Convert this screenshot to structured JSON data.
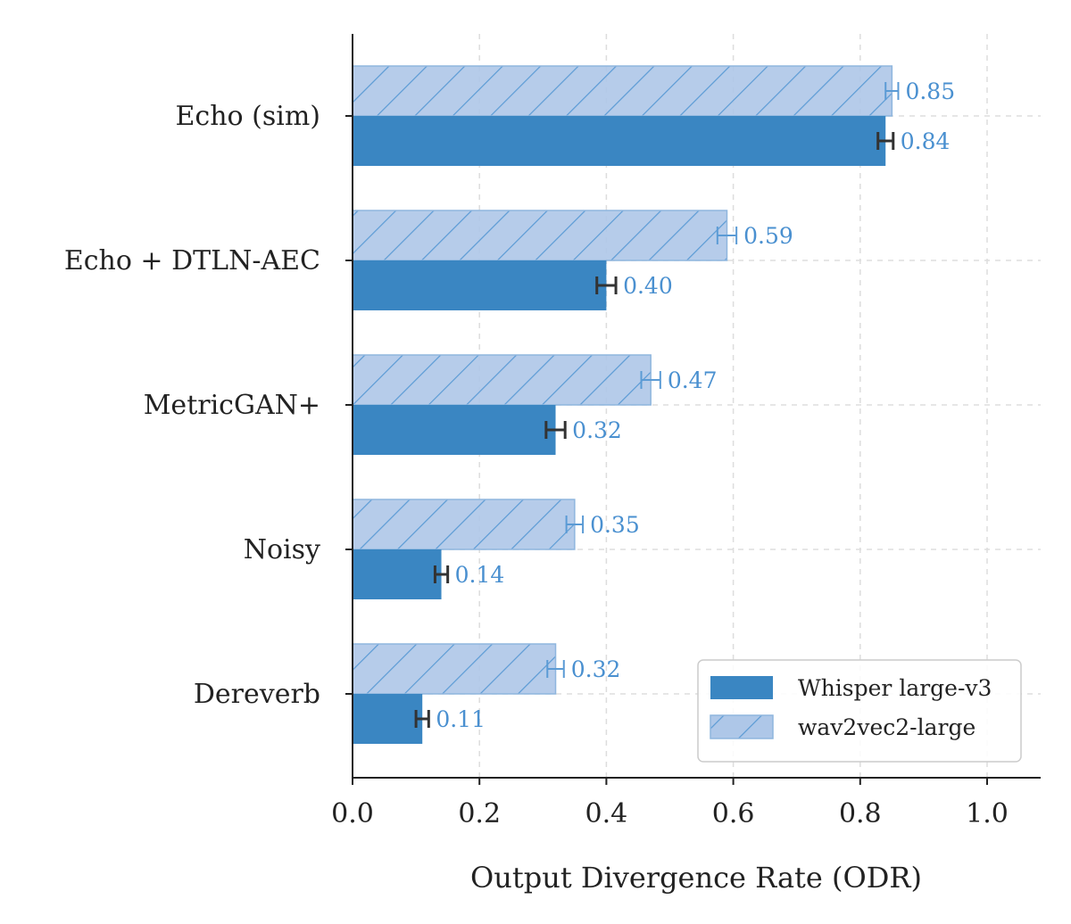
{
  "chart_data": {
    "type": "bar",
    "orientation": "horizontal",
    "categories": [
      "Echo (sim)",
      "Echo + DTLN-AEC",
      "MetricGAN+",
      "Noisy",
      "Dereverb"
    ],
    "series": [
      {
        "name": "wav2vec2-large",
        "values": [
          0.85,
          0.59,
          0.47,
          0.35,
          0.32
        ],
        "labels": [
          "0.85",
          "0.59",
          "0.47",
          "0.35",
          "0.32"
        ],
        "error": [
          0.01,
          0.015,
          0.015,
          0.013,
          0.013
        ],
        "color": "#aec7e8",
        "hatch": true
      },
      {
        "name": "Whisper large-v3",
        "values": [
          0.84,
          0.4,
          0.32,
          0.14,
          0.11
        ],
        "labels": [
          "0.84",
          "0.40",
          "0.32",
          "0.14",
          "0.11"
        ],
        "error": [
          0.012,
          0.015,
          0.015,
          0.01,
          0.01
        ],
        "color": "#3a86c2",
        "hatch": false
      }
    ],
    "xlabel": "Output Divergence Rate (ODR)",
    "xlim": [
      0,
      1.08
    ],
    "xticks": [
      0.0,
      0.2,
      0.4,
      0.6,
      0.8,
      1.0
    ],
    "xtick_labels": [
      "0.0",
      "0.2",
      "0.4",
      "0.6",
      "0.8",
      "1.0"
    ],
    "grid": true,
    "legend_position": "bottom-right",
    "label_color": "#4a90d0",
    "error_color": "#333333"
  }
}
